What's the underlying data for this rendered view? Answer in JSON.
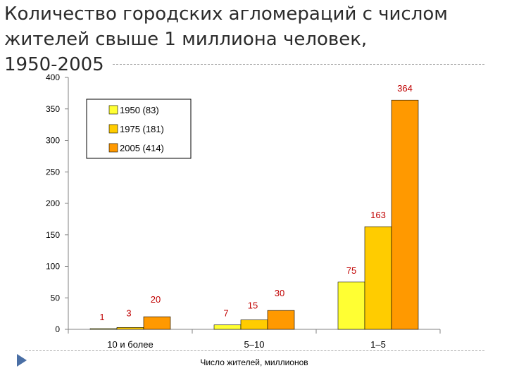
{
  "title_lines": [
    "Количество городских агломераций с числом",
    "жителей свыше 1 миллиона человек,",
    "1950-2005"
  ],
  "chart_data": {
    "type": "bar",
    "title": "Количество городских агломераций с числом жителей свыше 1 миллиона человек, 1950-2005",
    "xlabel": "Число жителей, миллионов",
    "ylabel": "",
    "ylim": [
      0,
      400
    ],
    "yticks": [
      0,
      50,
      100,
      150,
      200,
      250,
      300,
      350,
      400
    ],
    "categories": [
      "10 и более",
      "5–10",
      "1–5"
    ],
    "series": [
      {
        "name": "1950 (83)",
        "values": [
          1,
          7,
          75
        ],
        "color": "#ffff33"
      },
      {
        "name": "1975 (181)",
        "values": [
          3,
          15,
          163
        ],
        "color": "#ffcc00"
      },
      {
        "name": "2005 (414)",
        "values": [
          20,
          30,
          364
        ],
        "color": "#ff9900"
      }
    ],
    "data_label_color": "#c00000",
    "legend_position": "top-left",
    "grid": false
  },
  "colors": {
    "axis": "#808080",
    "bar_border": "#000000",
    "tick_text": "#000000"
  }
}
